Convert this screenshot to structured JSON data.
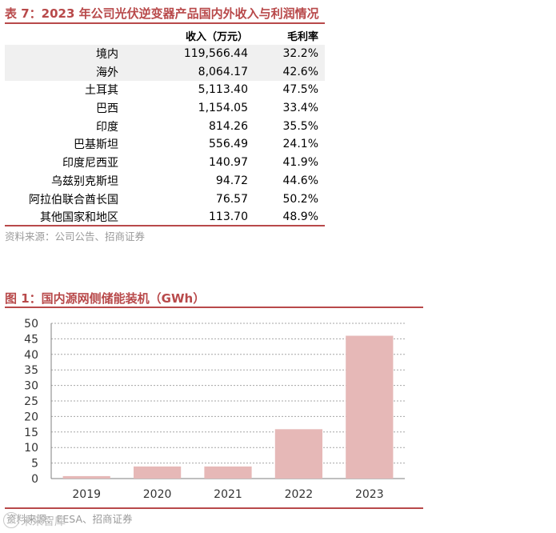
{
  "table": {
    "title": "表 7：2023 年公司光伏逆变器产品国内外收入与利润情况",
    "headers": [
      "",
      "收入（万元）",
      "毛利率"
    ],
    "rows": [
      [
        "境内",
        "119,566.44",
        "32.2%"
      ],
      [
        "海外",
        "8,064.17",
        "42.6%"
      ],
      [
        "土耳其",
        "5,113.40",
        "47.5%"
      ],
      [
        "巴西",
        "1,154.05",
        "33.4%"
      ],
      [
        "印度",
        "814.26",
        "35.5%"
      ],
      [
        "巴基斯坦",
        "556.49",
        "24.1%"
      ],
      [
        "印度尼西亚",
        "140.97",
        "41.9%"
      ],
      [
        "乌兹别克斯坦",
        "94.72",
        "44.6%"
      ],
      [
        "阿拉伯联合酋长国",
        "76.57",
        "50.2%"
      ],
      [
        "其他国家和地区",
        "113.70",
        "48.9%"
      ]
    ],
    "source": "资料来源：公司公告、招商证券"
  },
  "figure": {
    "title": "图 1：国内源网侧储能装机（GWh）",
    "source": "资料来源：EESA、招商证券"
  },
  "chart_data": {
    "type": "bar",
    "categories": [
      "2019",
      "2020",
      "2021",
      "2022",
      "2023"
    ],
    "values": [
      0.8,
      3.9,
      3.9,
      15.9,
      46
    ],
    "ylim": [
      0,
      50
    ],
    "yticks": [
      0,
      5,
      10,
      15,
      20,
      25,
      30,
      35,
      40,
      45,
      50
    ],
    "grid": true,
    "bar_color": "#e6b8b7",
    "title": "",
    "xlabel": "",
    "ylabel": ""
  },
  "watermark": {
    "text": "未来智库",
    "icon": "watermark-logo-icon"
  },
  "colors": {
    "accent": "#b8494a",
    "shade": "#f0f0f0",
    "source": "#9a9a9a"
  }
}
